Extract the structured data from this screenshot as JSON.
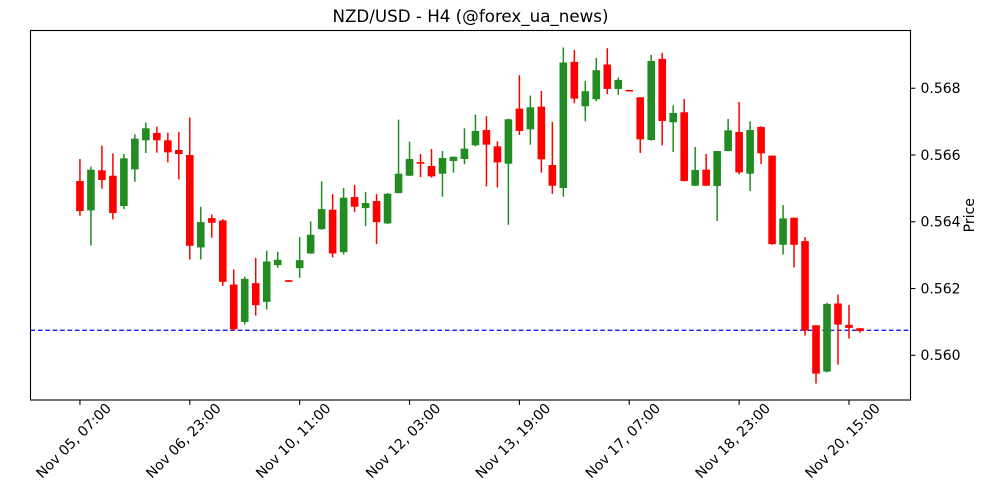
{
  "figure": {
    "title": "NZD/USD - H4 (@forex_ua_news)",
    "background": "#ffffff"
  },
  "chart_data": {
    "type": "candlestick",
    "title": "NZD/USD - H4 (@forex_ua_news)",
    "symbol": "NZD/USD",
    "timeframe": "H4",
    "watermark": "@forex_ua_news",
    "xlabel": "",
    "ylabel": "Price",
    "grid": false,
    "legend": null,
    "ylim": [
      0.55866,
      0.56973
    ],
    "xlim": [
      -4.5,
      75.6
    ],
    "y_ticks": [
      {
        "value": 0.56,
        "label": "0.560"
      },
      {
        "value": 0.562,
        "label": "0.562"
      },
      {
        "value": 0.564,
        "label": "0.564"
      },
      {
        "value": 0.566,
        "label": "0.566"
      },
      {
        "value": 0.568,
        "label": "0.568"
      }
    ],
    "x_ticks": [
      {
        "index": 0,
        "label": "Nov 05, 07:00"
      },
      {
        "index": 10,
        "label": "Nov 06, 23:00"
      },
      {
        "index": 20,
        "label": "Nov 10, 11:00"
      },
      {
        "index": 30,
        "label": "Nov 12, 03:00"
      },
      {
        "index": 40,
        "label": "Nov 13, 19:00"
      },
      {
        "index": 50,
        "label": "Nov 17, 07:00"
      },
      {
        "index": 60,
        "label": "Nov 18, 23:00"
      },
      {
        "index": 70,
        "label": "Nov 20, 15:00"
      }
    ],
    "up_color": "#228B22",
    "down_color": "#FF0000",
    "hline": {
      "value": 0.56075,
      "color": "#0000FF",
      "style": "dashed"
    },
    "candles": [
      {
        "t": "Nov 05, 07:00",
        "o": 0.56522,
        "h": 0.56588,
        "l": 0.56418,
        "c": 0.56432
      },
      {
        "t": "Nov 05, 11:00",
        "o": 0.56434,
        "h": 0.56565,
        "l": 0.56329,
        "c": 0.56556
      },
      {
        "t": "Nov 05, 15:00",
        "o": 0.56554,
        "h": 0.56628,
        "l": 0.56499,
        "c": 0.56525
      },
      {
        "t": "Nov 05, 19:00",
        "o": 0.56538,
        "h": 0.56605,
        "l": 0.56407,
        "c": 0.56426
      },
      {
        "t": "Nov 05, 23:00",
        "o": 0.56447,
        "h": 0.56603,
        "l": 0.56438,
        "c": 0.5659
      },
      {
        "t": "Nov 06, 03:00",
        "o": 0.56557,
        "h": 0.56662,
        "l": 0.5652,
        "c": 0.56649
      },
      {
        "t": "Nov 06, 07:00",
        "o": 0.56644,
        "h": 0.56697,
        "l": 0.56606,
        "c": 0.5668
      },
      {
        "t": "Nov 06, 11:00",
        "o": 0.56666,
        "h": 0.56685,
        "l": 0.56607,
        "c": 0.56644
      },
      {
        "t": "Nov 06, 15:00",
        "o": 0.56644,
        "h": 0.56667,
        "l": 0.56578,
        "c": 0.56608
      },
      {
        "t": "Nov 06, 19:00",
        "o": 0.56615,
        "h": 0.56669,
        "l": 0.56527,
        "c": 0.56603
      },
      {
        "t": "Nov 06, 23:00",
        "o": 0.566,
        "h": 0.56712,
        "l": 0.56287,
        "c": 0.56328
      },
      {
        "t": "Nov 07, 03:00",
        "o": 0.56323,
        "h": 0.56445,
        "l": 0.56287,
        "c": 0.56399
      },
      {
        "t": "Nov 07, 07:00",
        "o": 0.56411,
        "h": 0.56422,
        "l": 0.56352,
        "c": 0.56397
      },
      {
        "t": "Nov 07, 11:00",
        "o": 0.56404,
        "h": 0.56408,
        "l": 0.56208,
        "c": 0.5622
      },
      {
        "t": "Nov 07, 15:00",
        "o": 0.56212,
        "h": 0.56257,
        "l": 0.56074,
        "c": 0.56078
      },
      {
        "t": "Nov 07, 19:00",
        "o": 0.561,
        "h": 0.56236,
        "l": 0.56092,
        "c": 0.56229
      },
      {
        "t": "Nov 07, 23:00",
        "o": 0.56216,
        "h": 0.56292,
        "l": 0.56119,
        "c": 0.5615
      },
      {
        "t": "Nov 09, 23:00",
        "o": 0.5616,
        "h": 0.56313,
        "l": 0.56137,
        "c": 0.56281
      },
      {
        "t": "Nov 10, 03:00",
        "o": 0.5627,
        "h": 0.5631,
        "l": 0.56262,
        "c": 0.56286
      },
      {
        "t": "Nov 10, 07:00",
        "o": 0.56225,
        "h": 0.56225,
        "l": 0.5622,
        "c": 0.5622
      },
      {
        "t": "Nov 10, 11:00",
        "o": 0.56261,
        "h": 0.56354,
        "l": 0.56232,
        "c": 0.56285
      },
      {
        "t": "Nov 10, 15:00",
        "o": 0.56305,
        "h": 0.56401,
        "l": 0.56304,
        "c": 0.56361
      },
      {
        "t": "Nov 10, 19:00",
        "o": 0.56378,
        "h": 0.56521,
        "l": 0.56376,
        "c": 0.56438
      },
      {
        "t": "Nov 10, 23:00",
        "o": 0.56436,
        "h": 0.56483,
        "l": 0.56293,
        "c": 0.56305
      },
      {
        "t": "Nov 11, 03:00",
        "o": 0.56309,
        "h": 0.56501,
        "l": 0.56302,
        "c": 0.56472
      },
      {
        "t": "Nov 11, 07:00",
        "o": 0.56474,
        "h": 0.5651,
        "l": 0.56429,
        "c": 0.56445
      },
      {
        "t": "Nov 11, 11:00",
        "o": 0.56441,
        "h": 0.56489,
        "l": 0.56387,
        "c": 0.56456
      },
      {
        "t": "Nov 11, 15:00",
        "o": 0.56462,
        "h": 0.56483,
        "l": 0.56333,
        "c": 0.56399
      },
      {
        "t": "Nov 11, 19:00",
        "o": 0.56395,
        "h": 0.56486,
        "l": 0.56393,
        "c": 0.56484
      },
      {
        "t": "Nov 11, 23:00",
        "o": 0.56486,
        "h": 0.56706,
        "l": 0.56485,
        "c": 0.56544
      },
      {
        "t": "Nov 12, 03:00",
        "o": 0.56538,
        "h": 0.5664,
        "l": 0.56537,
        "c": 0.56588
      },
      {
        "t": "Nov 12, 07:00",
        "o": 0.56579,
        "h": 0.56603,
        "l": 0.56534,
        "c": 0.56574
      },
      {
        "t": "Nov 12, 11:00",
        "o": 0.56567,
        "h": 0.56618,
        "l": 0.56532,
        "c": 0.56536
      },
      {
        "t": "Nov 12, 15:00",
        "o": 0.56544,
        "h": 0.56612,
        "l": 0.56475,
        "c": 0.56591
      },
      {
        "t": "Nov 12, 19:00",
        "o": 0.56582,
        "h": 0.56595,
        "l": 0.56547,
        "c": 0.56595
      },
      {
        "t": "Nov 12, 23:00",
        "o": 0.56588,
        "h": 0.5668,
        "l": 0.56572,
        "c": 0.56619
      },
      {
        "t": "Nov 13, 03:00",
        "o": 0.56629,
        "h": 0.56721,
        "l": 0.56626,
        "c": 0.56672
      },
      {
        "t": "Nov 13, 07:00",
        "o": 0.56675,
        "h": 0.56716,
        "l": 0.56506,
        "c": 0.56631
      },
      {
        "t": "Nov 13, 11:00",
        "o": 0.56626,
        "h": 0.56641,
        "l": 0.56503,
        "c": 0.56578
      },
      {
        "t": "Nov 13, 15:00",
        "o": 0.56574,
        "h": 0.56709,
        "l": 0.56391,
        "c": 0.56707
      },
      {
        "t": "Nov 13, 19:00",
        "o": 0.56739,
        "h": 0.56839,
        "l": 0.5666,
        "c": 0.56672
      },
      {
        "t": "Nov 13, 23:00",
        "o": 0.56677,
        "h": 0.56778,
        "l": 0.56631,
        "c": 0.56743
      },
      {
        "t": "Nov 14, 03:00",
        "o": 0.56745,
        "h": 0.56792,
        "l": 0.56547,
        "c": 0.56587
      },
      {
        "t": "Nov 14, 07:00",
        "o": 0.5657,
        "h": 0.56699,
        "l": 0.56484,
        "c": 0.56508
      },
      {
        "t": "Nov 14, 11:00",
        "o": 0.56501,
        "h": 0.56922,
        "l": 0.56475,
        "c": 0.56877
      },
      {
        "t": "Nov 14, 15:00",
        "o": 0.56879,
        "h": 0.56915,
        "l": 0.56755,
        "c": 0.56769
      },
      {
        "t": "Nov 14, 19:00",
        "o": 0.56746,
        "h": 0.56822,
        "l": 0.56701,
        "c": 0.56791
      },
      {
        "t": "Nov 14, 23:00",
        "o": 0.56767,
        "h": 0.56891,
        "l": 0.56761,
        "c": 0.56854
      },
      {
        "t": "Nov 16, 23:00",
        "o": 0.56871,
        "h": 0.5692,
        "l": 0.56782,
        "c": 0.56798
      },
      {
        "t": "Nov 17, 03:00",
        "o": 0.56798,
        "h": 0.56832,
        "l": 0.5678,
        "c": 0.56825
      },
      {
        "t": "Nov 17, 07:00",
        "o": 0.56795,
        "h": 0.56795,
        "l": 0.56792,
        "c": 0.56792
      },
      {
        "t": "Nov 17, 11:00",
        "o": 0.56773,
        "h": 0.56773,
        "l": 0.56606,
        "c": 0.56647
      },
      {
        "t": "Nov 17, 15:00",
        "o": 0.56645,
        "h": 0.569,
        "l": 0.56643,
        "c": 0.56882
      },
      {
        "t": "Nov 17, 19:00",
        "o": 0.56888,
        "h": 0.56906,
        "l": 0.56629,
        "c": 0.56702
      },
      {
        "t": "Nov 17, 23:00",
        "o": 0.56698,
        "h": 0.56749,
        "l": 0.56609,
        "c": 0.56726
      },
      {
        "t": "Nov 18, 03:00",
        "o": 0.56728,
        "h": 0.56768,
        "l": 0.56521,
        "c": 0.56522
      },
      {
        "t": "Nov 18, 07:00",
        "o": 0.56508,
        "h": 0.56624,
        "l": 0.56507,
        "c": 0.56555
      },
      {
        "t": "Nov 18, 11:00",
        "o": 0.56556,
        "h": 0.56603,
        "l": 0.56507,
        "c": 0.56508
      },
      {
        "t": "Nov 18, 15:00",
        "o": 0.56507,
        "h": 0.56612,
        "l": 0.56402,
        "c": 0.56612
      },
      {
        "t": "Nov 18, 19:00",
        "o": 0.56612,
        "h": 0.56708,
        "l": 0.56611,
        "c": 0.56674
      },
      {
        "t": "Nov 18, 23:00",
        "o": 0.56669,
        "h": 0.56759,
        "l": 0.56542,
        "c": 0.56548
      },
      {
        "t": "Nov 19, 03:00",
        "o": 0.56544,
        "h": 0.56701,
        "l": 0.56492,
        "c": 0.56675
      },
      {
        "t": "Nov 19, 07:00",
        "o": 0.56684,
        "h": 0.56686,
        "l": 0.56573,
        "c": 0.56605
      },
      {
        "t": "Nov 19, 11:00",
        "o": 0.56598,
        "h": 0.56599,
        "l": 0.56331,
        "c": 0.56333
      },
      {
        "t": "Nov 19, 15:00",
        "o": 0.56331,
        "h": 0.5645,
        "l": 0.56302,
        "c": 0.5641
      },
      {
        "t": "Nov 19, 19:00",
        "o": 0.56412,
        "h": 0.56413,
        "l": 0.56263,
        "c": 0.56331
      },
      {
        "t": "Nov 19, 23:00",
        "o": 0.56342,
        "h": 0.56354,
        "l": 0.56059,
        "c": 0.56074
      },
      {
        "t": "Nov 20, 03:00",
        "o": 0.5609,
        "h": 0.56091,
        "l": 0.55915,
        "c": 0.55945
      },
      {
        "t": "Nov 20, 07:00",
        "o": 0.55951,
        "h": 0.56157,
        "l": 0.55949,
        "c": 0.56154
      },
      {
        "t": "Nov 20, 11:00",
        "o": 0.56155,
        "h": 0.56182,
        "l": 0.55972,
        "c": 0.56092
      },
      {
        "t": "Nov 20, 15:00",
        "o": 0.56091,
        "h": 0.56151,
        "l": 0.5605,
        "c": 0.56082
      },
      {
        "t": "Nov 20, 19:00",
        "o": 0.56081,
        "h": 0.56082,
        "l": 0.56068,
        "c": 0.56073
      }
    ]
  }
}
